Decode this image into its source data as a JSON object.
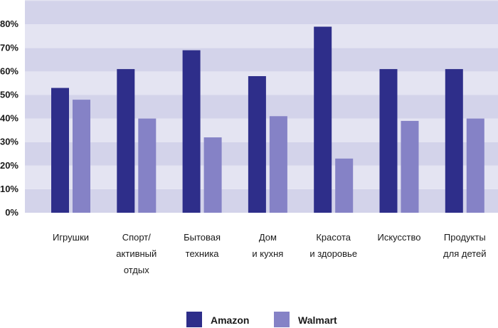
{
  "chart_data": {
    "type": "bar",
    "title": "",
    "xlabel": "",
    "ylabel": "",
    "ylim": [
      0,
      90
    ],
    "y_ticks": [
      0,
      10,
      20,
      30,
      40,
      50,
      60,
      70,
      80
    ],
    "y_tick_labels": [
      "0%",
      "10%",
      "20%",
      "30%",
      "40%",
      "50%",
      "60%",
      "70%",
      "80%"
    ],
    "categories": [
      [
        "Игрушки"
      ],
      [
        "Спорт/",
        "активный",
        "отдых"
      ],
      [
        "Бытовая",
        "техника"
      ],
      [
        "Дом",
        "и кухня"
      ],
      [
        "Красота",
        "и здоровье"
      ],
      [
        "Искусство"
      ],
      [
        "Продукты",
        "для детей"
      ]
    ],
    "series": [
      {
        "name": "Amazon",
        "color": "#2e2e8a",
        "values": [
          53,
          61,
          69,
          58,
          79,
          61,
          61
        ]
      },
      {
        "name": "Walmart",
        "color": "#8582c6",
        "values": [
          48,
          40,
          32,
          41,
          23,
          39,
          40
        ]
      }
    ],
    "legend_position": "bottom-center",
    "band_colors": [
      "#d3d3ea",
      "#e4e4f2"
    ]
  }
}
